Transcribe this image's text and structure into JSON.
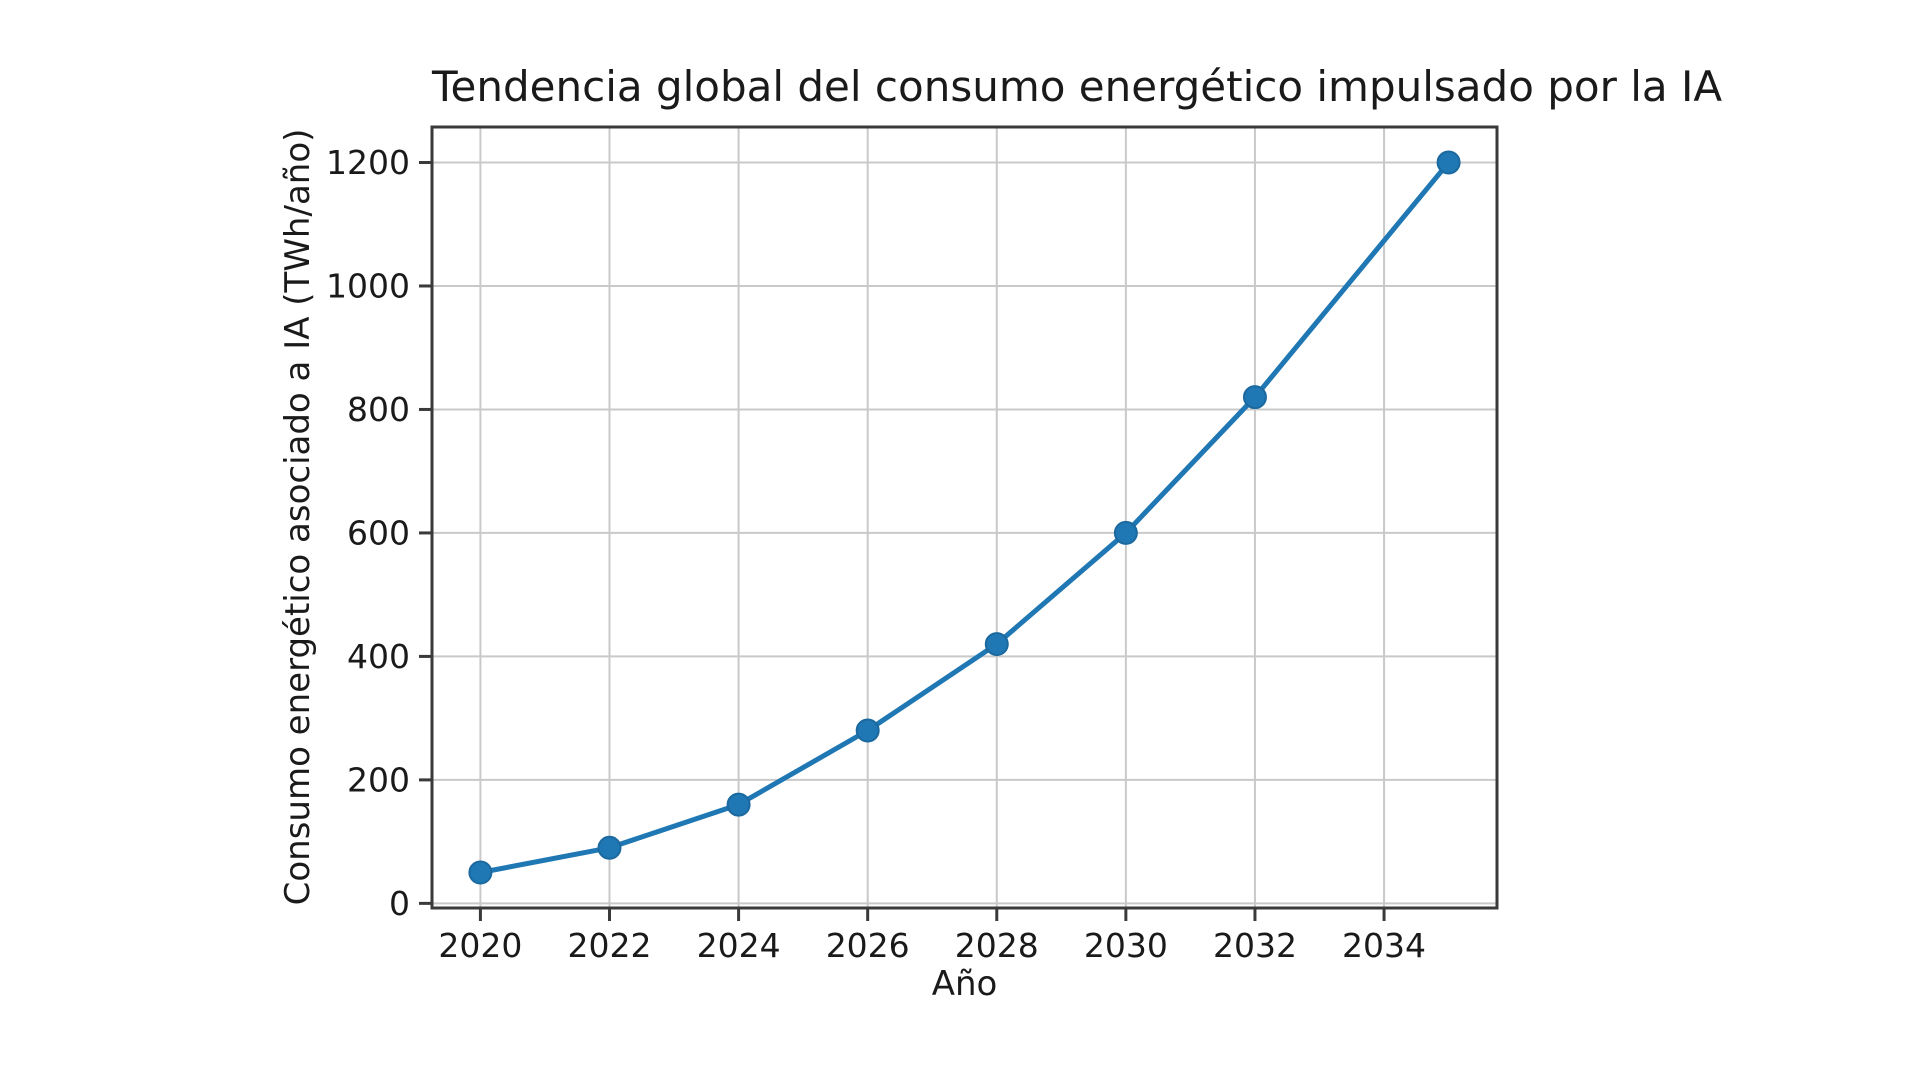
{
  "figure": {
    "background_color": "#ffffff"
  },
  "chart_data": {
    "type": "line",
    "title": "Tendencia global del consumo energético impulsado por la IA",
    "xlabel": "Año",
    "ylabel": "Consumo energético asociado a IA (TWh/año)",
    "x": [
      2020,
      2022,
      2024,
      2026,
      2028,
      2030,
      2032,
      2035
    ],
    "series": [
      {
        "name": "Consumo energético asociado a IA",
        "values": [
          50,
          90,
          160,
          280,
          420,
          600,
          820,
          1200
        ]
      }
    ],
    "x_ticks": [
      2020,
      2022,
      2024,
      2026,
      2028,
      2030,
      2032,
      2034
    ],
    "y_ticks": [
      0,
      200,
      400,
      600,
      800,
      1000,
      1200
    ],
    "xlim": [
      2019.25,
      2035.75
    ],
    "ylim": [
      -7.5,
      1257.5
    ],
    "grid": true,
    "legend": "none",
    "line_color": "#1f77b4",
    "marker_color": "#1f77b4",
    "marker_edge_color": "#1b699f",
    "grid_color": "#c9c9c9",
    "axis_color": "#3a3a3a",
    "tick_text_color": "#1a1a1a"
  }
}
